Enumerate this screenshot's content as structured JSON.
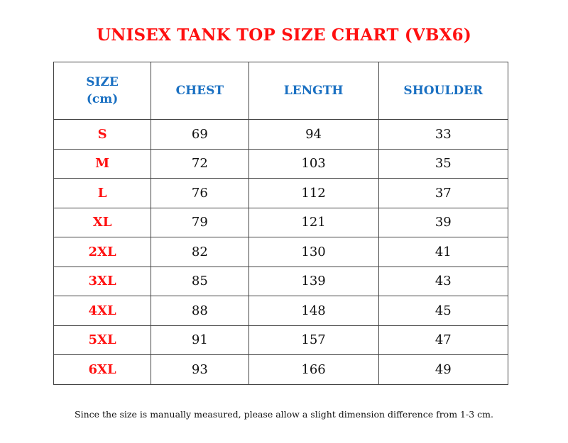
{
  "title": "UNISEX TANK TOP SIZE CHART (VBX6)",
  "header": {
    "size": "SIZE",
    "size_unit": "(cm)",
    "chest": "CHEST",
    "length": "LENGTH",
    "shoulder": "SHOULDER"
  },
  "rows": [
    {
      "size": "S",
      "chest": "69",
      "length": "94",
      "shoulder": "33"
    },
    {
      "size": "M",
      "chest": "72",
      "length": "103",
      "shoulder": "35"
    },
    {
      "size": "L",
      "chest": "76",
      "length": "112",
      "shoulder": "37"
    },
    {
      "size": "XL",
      "chest": "79",
      "length": "121",
      "shoulder": "39"
    },
    {
      "size": "2XL",
      "chest": "82",
      "length": "130",
      "shoulder": "41"
    },
    {
      "size": "3XL",
      "chest": "85",
      "length": "139",
      "shoulder": "43"
    },
    {
      "size": "4XL",
      "chest": "88",
      "length": "148",
      "shoulder": "45"
    },
    {
      "size": "5XL",
      "chest": "91",
      "length": "157",
      "shoulder": "47"
    },
    {
      "size": "6XL",
      "chest": "93",
      "length": "166",
      "shoulder": "49"
    }
  ],
  "note": "Since the size is manually measured, please allow a slight dimension difference from 1-3 cm.",
  "colors": {
    "title": "#ff1010",
    "header": "#1a70c2",
    "size_label": "#ff1010"
  }
}
